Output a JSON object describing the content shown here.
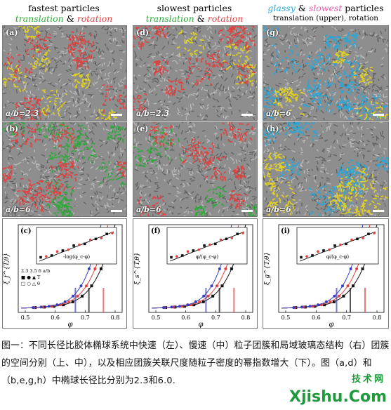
{
  "columns": [
    {
      "title": "fastest particles",
      "sub_a": "translation",
      "sub_amp": " & ",
      "sub_b": "rotation",
      "sub_style": "gr"
    },
    {
      "title": "slowest particles",
      "sub_a": "translation",
      "sub_amp": " & ",
      "sub_b": "rotation",
      "sub_style": "gr"
    },
    {
      "title_a": "glassy",
      "title_amp": " & ",
      "title_b": "slowest",
      "title_c": " particles",
      "sub": "translation (upper), rotation (lower)",
      "sub_style": "plain"
    }
  ],
  "panels_top": [
    {
      "label": "(a)",
      "ab": "a/b=2.3"
    },
    {
      "label": "(d)",
      "ab": "a/b=2.3"
    },
    {
      "label": "(g)",
      "ab": "a/b=6"
    }
  ],
  "panels_mid": [
    {
      "label": "(b)",
      "ab": "a/b=6"
    },
    {
      "label": "(e)",
      "ab": "a/b=6"
    },
    {
      "label": "(h)",
      "ab": "a/b=6"
    }
  ],
  "plots": [
    {
      "label": "(c)",
      "inset_xlabel": "-log(φ_c-φ)",
      "ylabel": "ξ_f^{T,θ}",
      "xlabel": "φ",
      "legend_rows": [
        "2.3   3.5   6   a/b",
        "■   ●   ▲   T",
        "□   ○   △   θ"
      ],
      "xticks": [
        "0.5",
        "0.6",
        "0.7",
        "0.8"
      ]
    },
    {
      "label": "(f)",
      "inset_xlabel": "φ/(φ_c-φ)",
      "ylabel": "ξ_s^{T,θ}",
      "xlabel": "φ",
      "xticks": [
        "0.5",
        "0.6",
        "0.7",
        "0.8"
      ]
    },
    {
      "label": "(i)",
      "inset_xlabel": "φ/(φ_c-φ)",
      "ylabel": "ξ_g^{T,θ}",
      "xlabel": "φ",
      "xticks": [
        "0.5",
        "0.6",
        "0.7",
        "0.8"
      ]
    }
  ],
  "caption": "图一：不同长径比胶体椭球系统中快速（左）、慢速（中）粒子团簇和局域玻璃态结构（右）团簇的空间分别（上、中），以及相应团簇关联尺度随粒子密度的幂指数增大（下）。图（a,d）和（b,e,g,h）中椭球长径比分别为2.3和6.0.",
  "watermark": {
    "top": "技术网",
    "main": "Xjishu.Com"
  },
  "colors": {
    "green": "#2fa83a",
    "red": "#e0413f",
    "blue": "#2aa6d8",
    "pink": "#e55aa6",
    "yellow": "#e2d21e",
    "black": "#111111"
  }
}
